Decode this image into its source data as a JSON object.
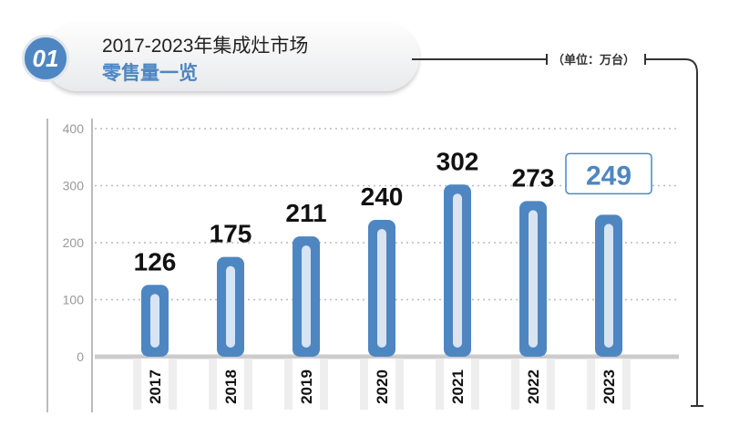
{
  "header": {
    "badge": "01",
    "title_line1": "2017-2023年集成灶市场",
    "title_line2": "零售量一览",
    "unit": "（单位：万台）"
  },
  "chart_data": {
    "type": "bar",
    "title": "2017-2023年集成灶市场零售量一览",
    "ylabel": "单位：万台",
    "categories": [
      "2017",
      "2018",
      "2019",
      "2020",
      "2021",
      "2022",
      "2023"
    ],
    "values": [
      126,
      175,
      211,
      240,
      302,
      273,
      249
    ],
    "yticks": [
      "0",
      "100",
      "200",
      "300",
      "400"
    ],
    "ylim": [
      0,
      400
    ],
    "grid": true,
    "highlight": "2023",
    "colors": {
      "bar": "#4e86c2",
      "inner": "#d8e4f1",
      "grid": "#bbbbbb"
    }
  }
}
